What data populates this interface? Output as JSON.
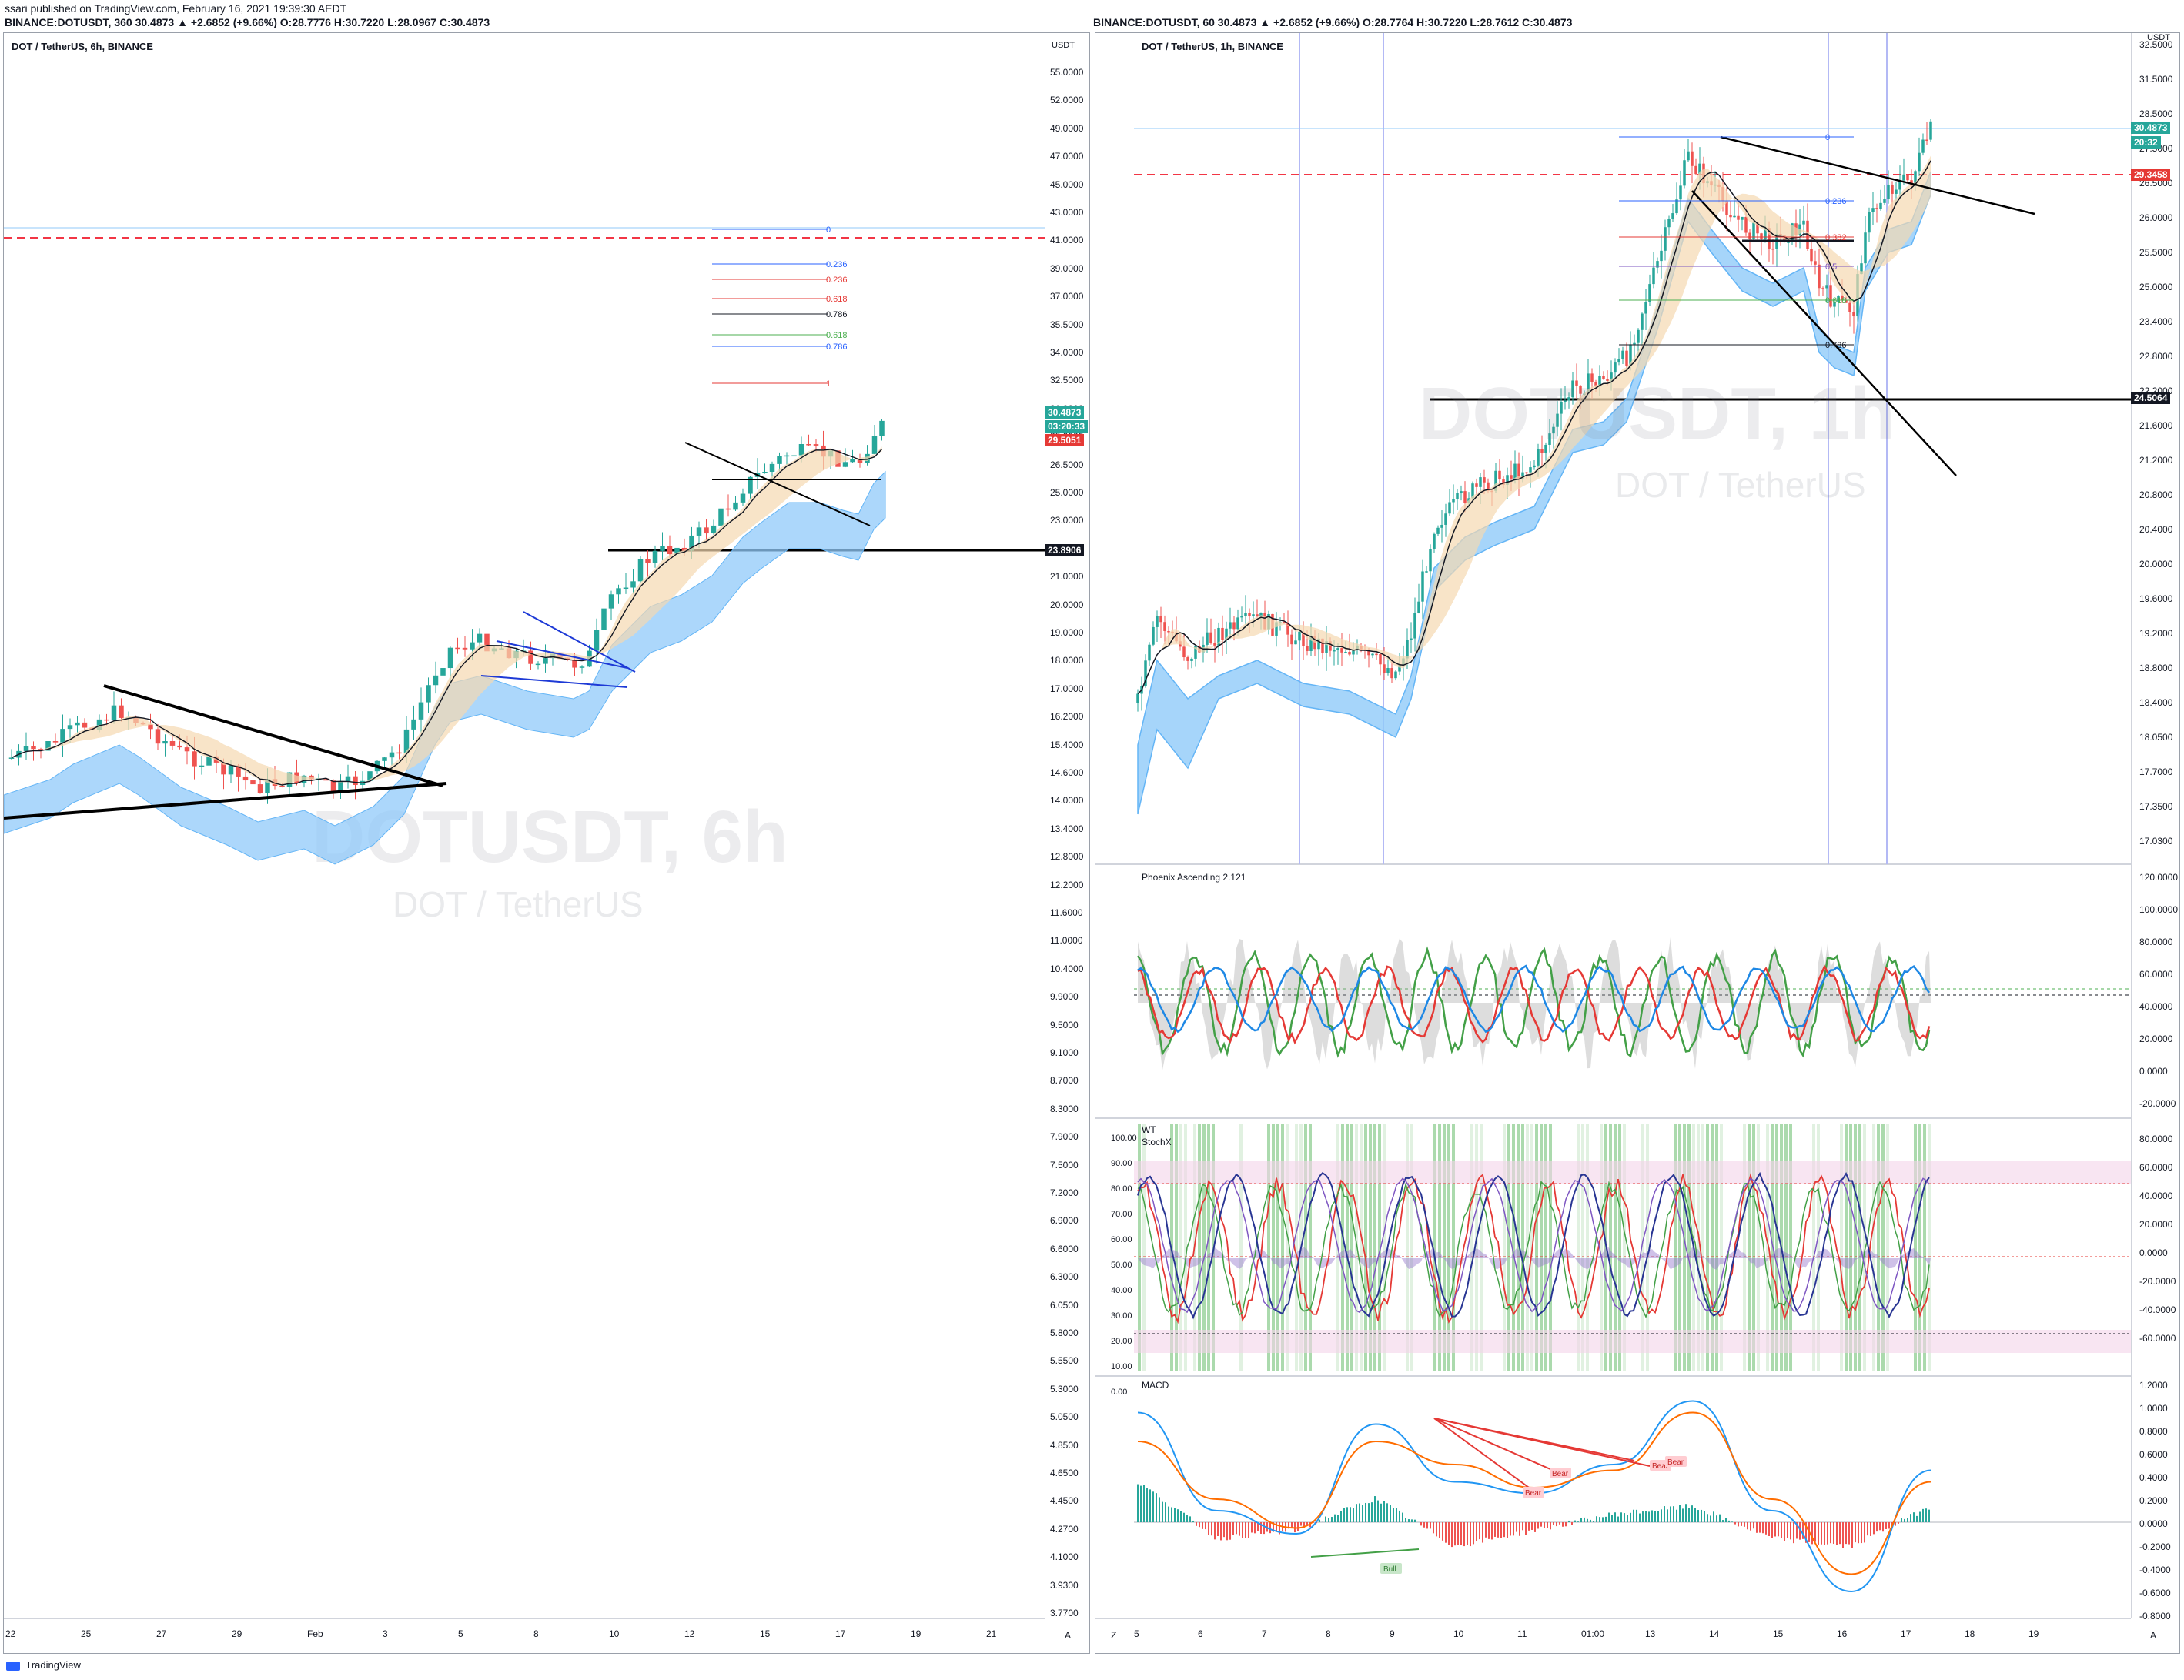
{
  "header": {
    "publisher": "ssari published on TradingView.com, February 16, 2021 19:39:30 AEDT",
    "left_symbol_line": "BINANCE:DOTUSDT, 360 30.4873 ▲ +2.6852 (+9.66%) O:28.7776 H:30.7220 L:28.0967 C:30.4873",
    "right_symbol_line": "BINANCE:DOTUSDT, 60 30.4873 ▲ +2.6852 (+9.66%) O:28.7764 H:30.7220 L:28.7612 C:30.4873"
  },
  "left_chart": {
    "title": "DOT / TetherUS, 6h, BINANCE",
    "watermark_symbol": "DOTUSDT, 6h",
    "watermark_name": "DOT / TetherUS",
    "currency": "USDT",
    "price_scale": [
      "55.0000",
      "52.0000",
      "49.0000",
      "47.0000",
      "45.0000",
      "43.0000",
      "41.0000",
      "39.0000",
      "37.0000",
      "35.5000",
      "34.0000",
      "32.5000",
      "31.0000",
      "28.0000",
      "26.5000",
      "25.0000",
      "23.0000",
      "22.0000",
      "21.0000",
      "20.0000",
      "19.0000",
      "18.0000",
      "17.0000",
      "16.2000",
      "15.4000",
      "14.6000",
      "14.0000",
      "13.4000",
      "12.8000",
      "12.2000",
      "11.6000",
      "11.0000",
      "10.4000",
      "9.9000",
      "9.5000",
      "9.1000",
      "8.7000",
      "8.3000",
      "7.9000",
      "7.5000",
      "7.2000",
      "6.9000",
      "6.6000",
      "6.3000",
      "6.0500",
      "5.8000",
      "5.5500",
      "5.3000",
      "5.0500",
      "4.8500",
      "4.6500",
      "4.4500",
      "4.2700",
      "4.1000",
      "3.9300",
      "3.7700"
    ],
    "time_scale": [
      "22",
      "25",
      "27",
      "29",
      "Feb",
      "3",
      "5",
      "8",
      "10",
      "12",
      "15",
      "17",
      "19",
      "21"
    ],
    "last_price": "30.4873",
    "countdown": "03:20:33",
    "red_line_price": "29.5051",
    "black_level": "23.8906",
    "fib_labels": [
      "0",
      "0.236",
      "0.236",
      "0.618",
      "0.786",
      "0.618",
      "0.786",
      "1"
    ]
  },
  "right_chart": {
    "title": "DOT / TetherUS, 1h, BINANCE",
    "watermark_symbol": "DOTUSDT, 1h",
    "watermark_name": "DOT / TetherUS",
    "currency": "USDT",
    "price_scale": [
      "32.5000",
      "31.5000",
      "28.5000",
      "27.5000",
      "26.5000",
      "26.0000",
      "25.5000",
      "25.0000",
      "23.4000",
      "22.8000",
      "22.2000",
      "21.6000",
      "21.2000",
      "20.8000",
      "20.4000",
      "20.0000",
      "19.6000",
      "19.2000",
      "18.8000",
      "18.4000",
      "18.0500",
      "17.7000",
      "17.3500",
      "17.0300"
    ],
    "time_scale": [
      "5",
      "6",
      "7",
      "8",
      "9",
      "10",
      "11",
      "01:00",
      "13",
      "14",
      "15",
      "16",
      "17",
      "18",
      "19"
    ],
    "last_price": "30.4873",
    "countdown": "20:32",
    "red_line_price": "29.3458",
    "black_level": "24.5064",
    "fib_labels": [
      "0",
      "0.236",
      "0.382",
      "0.5",
      "0.618",
      "0.786"
    ]
  },
  "indicator_phoenix": {
    "title": "Phoenix Ascending 2.121",
    "scale": [
      "120.0000",
      "100.0000",
      "80.0000",
      "60.0000",
      "40.0000",
      "20.0000",
      "0.0000",
      "-20.0000"
    ]
  },
  "indicator_wt": {
    "title_line1": "WT",
    "title_line2": "StochX",
    "left_scale": [
      "100.00",
      "90.00",
      "80.00",
      "70.00",
      "60.00",
      "50.00",
      "40.00",
      "30.00",
      "20.00",
      "10.00",
      "0.00"
    ],
    "right_scale": [
      "80.0000",
      "60.0000",
      "40.0000",
      "20.0000",
      "0.0000",
      "-20.0000",
      "-40.0000",
      "-60.0000"
    ]
  },
  "indicator_macd": {
    "title": "MACD",
    "scale": [
      "1.2000",
      "1.0000",
      "0.8000",
      "0.6000",
      "0.4000",
      "0.2000",
      "0.0000",
      "-0.2000",
      "-0.4000",
      "-0.6000",
      "-0.8000"
    ],
    "divergence_labels": [
      "Bear",
      "Bear",
      "Bear",
      "Bear"
    ],
    "bull_label": "Bull"
  },
  "footer": {
    "brand": "TradingView",
    "left_corner": "A",
    "right_corner_left": "Z",
    "right_corner_right": "A"
  },
  "colors": {
    "up": "#26a69a",
    "down": "#ef5350",
    "ribbon": "#64b5f6",
    "ribbon_fill": "#90caf9",
    "tan_fill": "#f5d9b0",
    "red_dash": "#f23645",
    "fib_blue": "#2962ff"
  },
  "chart_data": [
    {
      "type": "candlestick",
      "title": "DOT / TetherUS, 6h, BINANCE",
      "y_scale": "log",
      "ylim": [
        3.77,
        55.0
      ],
      "x_range": [
        "Jan 21",
        "Feb 21"
      ],
      "last_close": 30.4873,
      "series": [
        {
          "name": "close (approx.)",
          "x": [
            "Jan 22",
            "Jan 24",
            "Jan 25",
            "Jan 27",
            "Jan 29",
            "Jan 31",
            "Feb 1",
            "Feb 3",
            "Feb 4",
            "Feb 5",
            "Feb 6",
            "Feb 8",
            "Feb 9",
            "Feb 10",
            "Feb 11",
            "Feb 12",
            "Feb 13",
            "Feb 14",
            "Feb 15",
            "Feb 16"
          ],
          "values": [
            16.4,
            17.6,
            18.6,
            17.3,
            16.3,
            16.4,
            16.0,
            16.5,
            17.6,
            20.2,
            20.0,
            19.8,
            21.8,
            23.3,
            25.0,
            27.5,
            27.6,
            27.0,
            27.8,
            30.49
          ]
        }
      ],
      "levels": {
        "horizontal_red": 29.5051,
        "horizontal_black": 23.8906
      }
    },
    {
      "type": "candlestick",
      "title": "DOT / TetherUS, 1h, BINANCE",
      "ylim": [
        17.03,
        32.5
      ],
      "x_range": [
        "Feb 5",
        "Feb 19"
      ],
      "last_close": 30.4873,
      "series": [
        {
          "name": "close (approx.)",
          "x": [
            "Feb 4",
            "Feb 5",
            "Feb 6",
            "Feb 7",
            "Feb 8",
            "Feb 9",
            "Feb 10",
            "Feb 11",
            "Feb 12",
            "Feb 13",
            "Feb 14",
            "Feb 15",
            "Feb 16",
            "Feb 16 19:00"
          ],
          "values": [
            18.5,
            20.3,
            20.4,
            20.4,
            19.6,
            22.8,
            22.9,
            22.5,
            25.1,
            29.4,
            28.3,
            26.5,
            28.4,
            30.49
          ]
        }
      ],
      "levels": {
        "horizontal_red": 29.3458,
        "horizontal_black": 24.5064
      }
    },
    {
      "type": "line",
      "title": "MACD",
      "ylim": [
        -0.8,
        1.2
      ],
      "x": [
        "Feb 4",
        "Feb 6",
        "Feb 8",
        "Feb 9",
        "Feb 10",
        "Feb 11",
        "Feb 12",
        "Feb 13",
        "Feb 14",
        "Feb 15",
        "Feb 16"
      ],
      "series": [
        {
          "values": [
            0.95,
            0.1,
            -0.1,
            0.85,
            0.35,
            0.25,
            0.5,
            1.05,
            0.1,
            -0.6,
            0.45
          ]
        },
        {
          "values": [
            0.7,
            0.2,
            -0.05,
            0.7,
            0.5,
            0.3,
            0.45,
            0.95,
            0.2,
            -0.45,
            0.35
          ]
        }
      ]
    }
  ]
}
